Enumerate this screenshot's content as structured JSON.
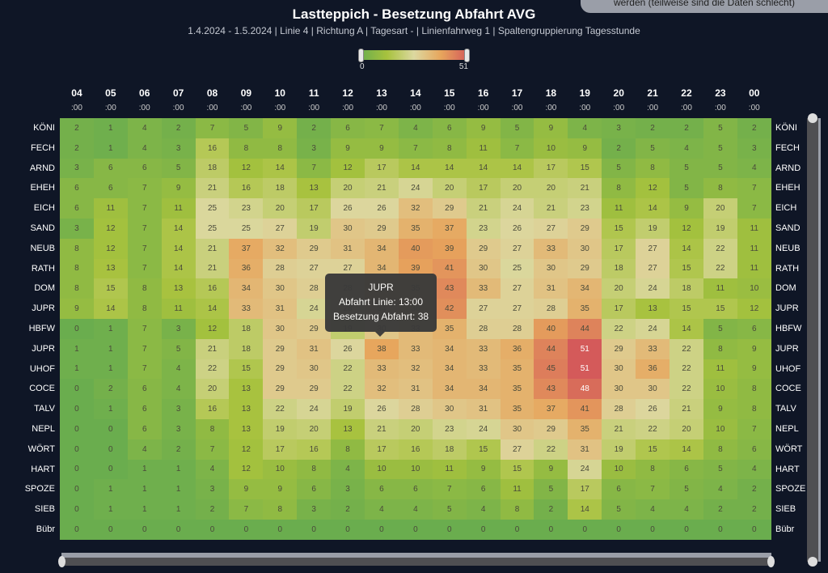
{
  "header": {
    "title": "Lastteppich - Besetzung Abfahrt AVG",
    "subtitle": "1.4.2024 - 1.5.2024 | Linie 4 | Richtung A | Tagesart - | Linienfahrweg 1 | Spaltengruppierung Tagesstunde",
    "notice": "werden (teilweise sind die Daten schlecht)"
  },
  "legend": {
    "min": "0",
    "max": "51",
    "colors": [
      "#6aad4e",
      "#a7c23d",
      "#dcd8a0",
      "#e7a55c",
      "#d45a5a"
    ]
  },
  "tooltip": {
    "station": "JUPR",
    "line1": "Abfahrt Linie: 13:00",
    "line2": "Besetzung Abfahrt: 38"
  },
  "chart_data": {
    "type": "heatmap",
    "title": "Lastteppich - Besetzung Abfahrt AVG",
    "subtitle": "1.4.2024 - 1.5.2024 | Linie 4 | Richtung A | Tagesart - | Linienfahrweg 1 | Spaltengruppierung Tagesstunde",
    "x": [
      "04:00",
      "05:00",
      "06:00",
      "07:00",
      "08:00",
      "09:00",
      "10:00",
      "11:00",
      "12:00",
      "13:00",
      "14:00",
      "15:00",
      "16:00",
      "17:00",
      "18:00",
      "19:00",
      "20:00",
      "21:00",
      "22:00",
      "23:00",
      "00:00"
    ],
    "x_hours": [
      "04",
      "05",
      "06",
      "07",
      "08",
      "09",
      "10",
      "11",
      "12",
      "13",
      "14",
      "15",
      "16",
      "17",
      "18",
      "19",
      "20",
      "21",
      "22",
      "23",
      "00"
    ],
    "x_minutes": ":00",
    "y": [
      "KÖNI",
      "FECH",
      "ARND",
      "EHEH",
      "EICH",
      "SAND",
      "NEUB",
      "RATH",
      "DOM",
      "JUPR",
      "HBFW",
      "JUPR",
      "UHOF",
      "COCE",
      "TALV",
      "NEPL",
      "WÖRT",
      "HART",
      "SPOZE",
      "SIEB",
      "Bübr"
    ],
    "values": [
      [
        2,
        1,
        4,
        2,
        7,
        5,
        9,
        2,
        6,
        7,
        4,
        6,
        9,
        5,
        9,
        4,
        3,
        2,
        2,
        5,
        2
      ],
      [
        2,
        1,
        4,
        3,
        16,
        8,
        8,
        3,
        9,
        9,
        7,
        8,
        11,
        7,
        10,
        9,
        2,
        5,
        4,
        5,
        3
      ],
      [
        3,
        6,
        6,
        5,
        18,
        12,
        14,
        7,
        12,
        17,
        14,
        14,
        14,
        14,
        17,
        15,
        5,
        8,
        5,
        5,
        4
      ],
      [
        6,
        6,
        7,
        9,
        21,
        16,
        18,
        13,
        20,
        21,
        24,
        20,
        17,
        20,
        20,
        21,
        8,
        12,
        5,
        8,
        7
      ],
      [
        6,
        11,
        7,
        11,
        25,
        23,
        20,
        17,
        26,
        26,
        32,
        29,
        21,
        24,
        21,
        23,
        11,
        14,
        9,
        20,
        7
      ],
      [
        3,
        12,
        7,
        14,
        25,
        25,
        27,
        19,
        30,
        29,
        35,
        37,
        23,
        26,
        27,
        29,
        15,
        19,
        12,
        19,
        11
      ],
      [
        8,
        12,
        7,
        14,
        21,
        37,
        32,
        29,
        31,
        34,
        40,
        39,
        29,
        27,
        33,
        30,
        17,
        27,
        14,
        22,
        11
      ],
      [
        8,
        13,
        7,
        14,
        21,
        36,
        28,
        27,
        27,
        34,
        39,
        41,
        30,
        25,
        30,
        29,
        18,
        27,
        15,
        22,
        11
      ],
      [
        8,
        15,
        8,
        13,
        16,
        34,
        30,
        28,
        28,
        35,
        35,
        43,
        33,
        27,
        31,
        34,
        20,
        24,
        18,
        11,
        10
      ],
      [
        9,
        14,
        8,
        11,
        14,
        33,
        31,
        24,
        28,
        34,
        36,
        42,
        27,
        27,
        28,
        35,
        17,
        13,
        15,
        15,
        12
      ],
      [
        0,
        1,
        7,
        3,
        12,
        18,
        30,
        29,
        19,
        30,
        33,
        35,
        28,
        28,
        40,
        44,
        22,
        24,
        14,
        5,
        6
      ],
      [
        1,
        1,
        7,
        5,
        21,
        18,
        29,
        31,
        26,
        38,
        33,
        34,
        33,
        36,
        44,
        51,
        29,
        33,
        22,
        8,
        9
      ],
      [
        1,
        1,
        7,
        4,
        22,
        15,
        29,
        30,
        22,
        33,
        32,
        34,
        33,
        35,
        45,
        51,
        30,
        36,
        22,
        11,
        9
      ],
      [
        0,
        2,
        6,
        4,
        20,
        13,
        29,
        29,
        22,
        32,
        31,
        34,
        34,
        35,
        43,
        48,
        30,
        30,
        22,
        10,
        8
      ],
      [
        0,
        1,
        6,
        3,
        16,
        13,
        22,
        24,
        19,
        26,
        28,
        30,
        31,
        35,
        37,
        41,
        28,
        26,
        21,
        9,
        8
      ],
      [
        0,
        0,
        6,
        3,
        8,
        13,
        19,
        20,
        13,
        21,
        20,
        23,
        24,
        30,
        29,
        35,
        21,
        22,
        20,
        10,
        7
      ],
      [
        0,
        0,
        4,
        2,
        7,
        12,
        17,
        16,
        8,
        17,
        16,
        18,
        15,
        27,
        22,
        31,
        19,
        15,
        14,
        8,
        6
      ],
      [
        0,
        0,
        1,
        1,
        4,
        12,
        10,
        8,
        4,
        10,
        10,
        11,
        9,
        15,
        9,
        24,
        10,
        8,
        6,
        5,
        4
      ],
      [
        0,
        1,
        1,
        1,
        3,
        9,
        9,
        6,
        3,
        6,
        6,
        7,
        6,
        11,
        5,
        17,
        6,
        7,
        5,
        4,
        2
      ],
      [
        0,
        1,
        1,
        1,
        2,
        7,
        8,
        3,
        2,
        4,
        4,
        5,
        4,
        8,
        2,
        14,
        5,
        4,
        4,
        2,
        2
      ],
      [
        0,
        0,
        0,
        0,
        0,
        0,
        0,
        0,
        0,
        0,
        0,
        0,
        0,
        0,
        0,
        0,
        0,
        0,
        0,
        0,
        0
      ]
    ],
    "color_scale": {
      "min": 0,
      "max": 51,
      "colors": [
        "#6aad4e",
        "#a7c23d",
        "#dcd8a0",
        "#e7a55c",
        "#d45a5a"
      ]
    },
    "legend_position": "top-center"
  }
}
